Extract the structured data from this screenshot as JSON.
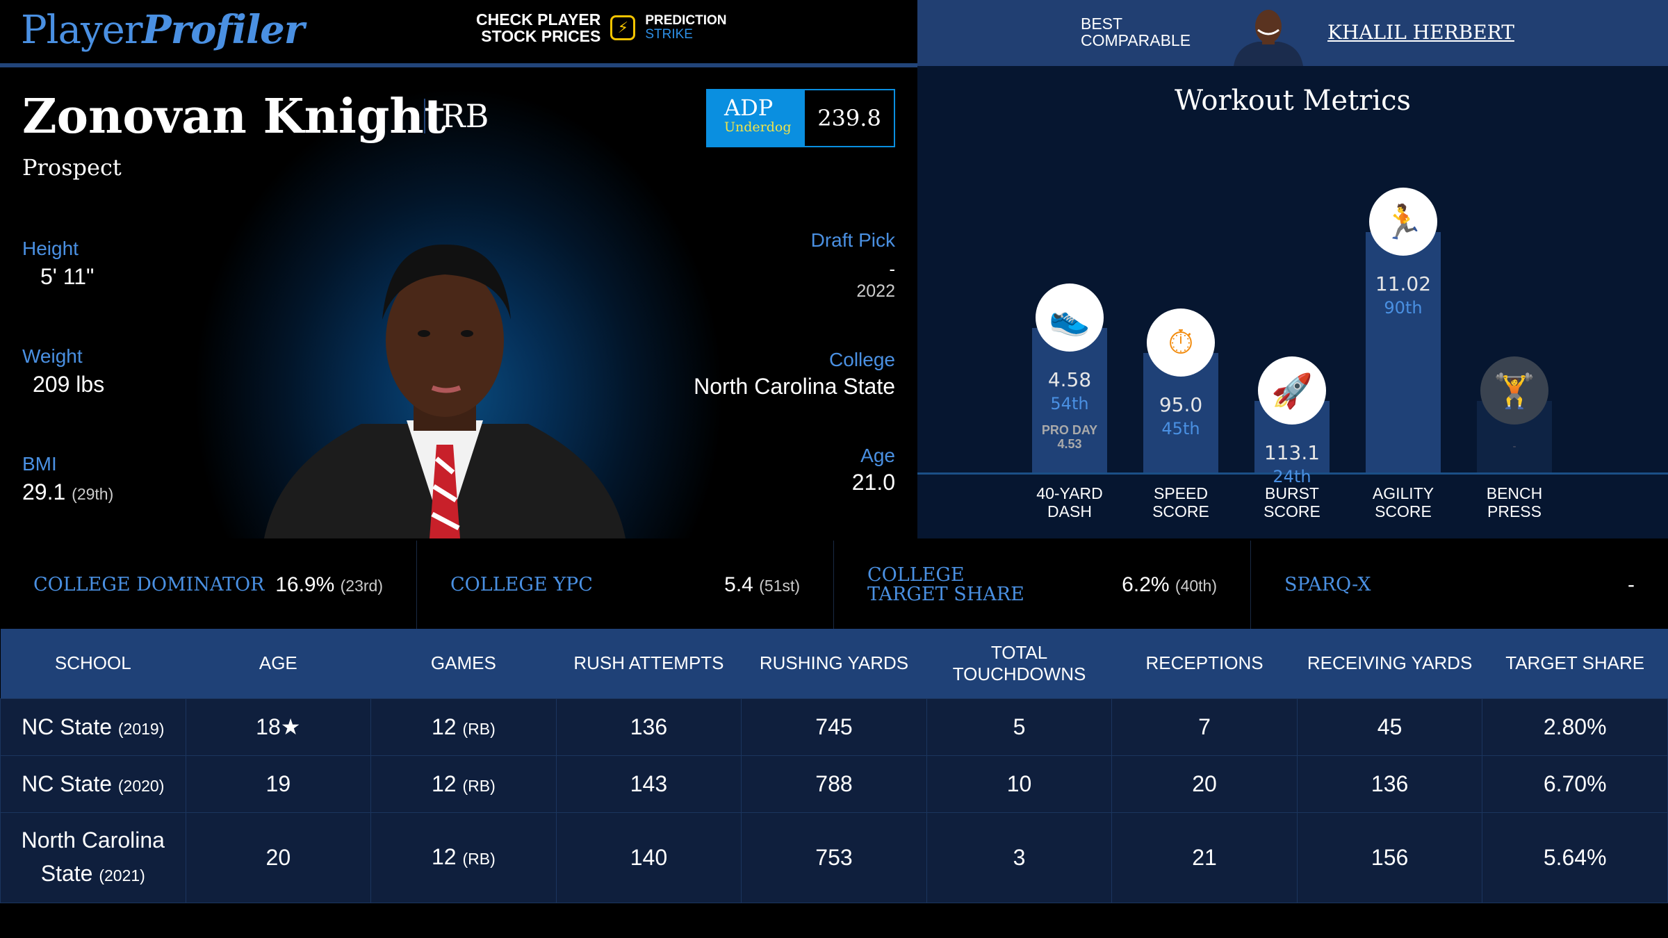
{
  "header": {
    "logo_player": "Player",
    "logo_profiler": "Profiler",
    "promo_line1": "CHECK PLAYER",
    "promo_line2": "STOCK PRICES",
    "promo_brand1": "PREDICTION",
    "promo_brand2": "STRIKE",
    "best_comparable_line1": "BEST",
    "best_comparable_line2": "COMPARABLE",
    "best_comparable_name": "KHALIL HERBERT"
  },
  "player": {
    "name": "Zonovan Knight",
    "position": "RB",
    "status": "Prospect",
    "adp_label": "ADP",
    "adp_source": "Underdog",
    "adp_value": "239.8",
    "height_label": "Height",
    "height": "5' 11\"",
    "weight_label": "Weight",
    "weight": "209 lbs",
    "bmi_label": "BMI",
    "bmi": "29.1",
    "bmi_rank": "(29th)",
    "draft_pick_label": "Draft Pick",
    "draft_pick": "-",
    "draft_year": "2022",
    "college_label": "College",
    "college": "North Carolina State",
    "age_label": "Age",
    "age": "21.0"
  },
  "workout": {
    "title": "Workout Metrics",
    "metrics": [
      {
        "label1": "40-YARD",
        "label2": "DASH",
        "value": "4.58",
        "percentile": "54th",
        "percentile_num": 54,
        "icon": "shoe-icon",
        "note1": "PRO DAY",
        "note2": "4.53"
      },
      {
        "label1": "SPEED",
        "label2": "SCORE",
        "value": "95.0",
        "percentile": "45th",
        "percentile_num": 45,
        "icon": "stopwatch-icon"
      },
      {
        "label1": "BURST",
        "label2": "SCORE",
        "value": "113.1",
        "percentile": "24th",
        "percentile_num": 24,
        "icon": "rocket-icon"
      },
      {
        "label1": "AGILITY",
        "label2": "SCORE",
        "value": "11.02",
        "percentile": "90th",
        "percentile_num": 90,
        "icon": "runner-icon"
      },
      {
        "label1": "BENCH",
        "label2": "PRESS",
        "value": "-",
        "percentile": "",
        "icon": "dumbbell-icon"
      }
    ]
  },
  "college_stats": [
    {
      "label": "COLLEGE DOMINATOR",
      "value": "16.9%",
      "rank": "(23rd)"
    },
    {
      "label": "COLLEGE YPC",
      "value": "5.4",
      "rank": "(51st)"
    },
    {
      "label": "COLLEGE TARGET SHARE",
      "value": "6.2%",
      "rank": "(40th)"
    },
    {
      "label": "SPARQ-X",
      "value": "-",
      "rank": ""
    }
  ],
  "table": {
    "headers": [
      "SCHOOL",
      "AGE",
      "GAMES",
      "RUSH ATTEMPTS",
      "RUSHING YARDS",
      "TOTAL TOUCHDOWNS",
      "RECEPTIONS",
      "RECEIVING YARDS",
      "TARGET SHARE"
    ],
    "rows": [
      {
        "school": "NC State",
        "year": "(2019)",
        "age": "18★",
        "games": "12",
        "games_pos": "(RB)",
        "rush_att": "136",
        "rush_yds": "745",
        "td": "5",
        "rec": "7",
        "rec_yds": "45",
        "tgt": "2.80%"
      },
      {
        "school": "NC State",
        "year": "(2020)",
        "age": "19",
        "games": "12",
        "games_pos": "(RB)",
        "rush_att": "143",
        "rush_yds": "788",
        "td": "10",
        "rec": "20",
        "rec_yds": "136",
        "tgt": "6.70%"
      },
      {
        "school": "North Carolina State",
        "year": "(2021)",
        "age": "20",
        "games": "12",
        "games_pos": "(RB)",
        "rush_att": "140",
        "rush_yds": "753",
        "td": "3",
        "rec": "21",
        "rec_yds": "156",
        "tgt": "5.64%"
      }
    ]
  },
  "colors": {
    "accent": "#4a90e2",
    "header_blue": "#213f72",
    "icon_orange": "#f28c0f",
    "adp_blue": "#0a8fe0"
  }
}
